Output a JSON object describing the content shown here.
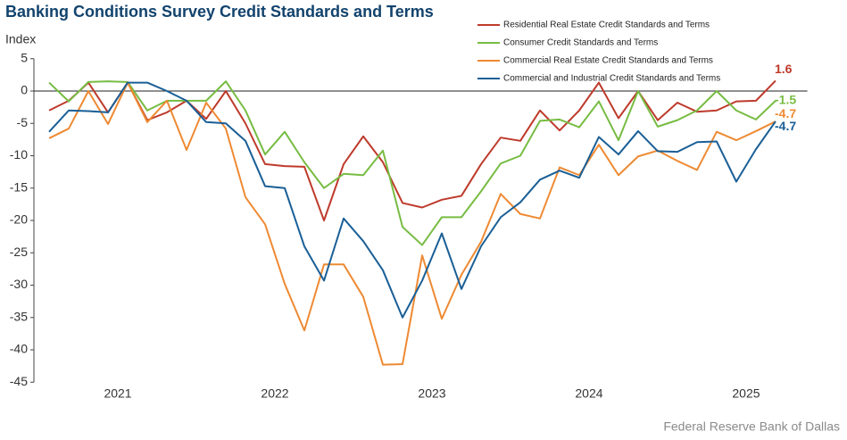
{
  "chart_data": {
    "type": "line",
    "title": "Banking Conditions Survey Credit Standards and Terms",
    "y_label": "Index",
    "source": "Federal Reserve Bank of Dallas",
    "x": [
      2021.0625,
      2021.1875,
      2021.3125,
      2021.4375,
      2021.5625,
      2021.6875,
      2021.8125,
      2021.9375,
      2022.0625,
      2022.1875,
      2022.3125,
      2022.4375,
      2022.5625,
      2022.6875,
      2022.8125,
      2022.9375,
      2023.0625,
      2023.1875,
      2023.3125,
      2023.4375,
      2023.5625,
      2023.6875,
      2023.8125,
      2023.9375,
      2024.0625,
      2024.1875,
      2024.3125,
      2024.4375,
      2024.5625,
      2024.6875,
      2024.8125,
      2024.9375,
      2025.0625,
      2025.1875,
      2025.3125,
      2025.4375,
      2025.5625,
      2025.6875
    ],
    "xlim": [
      2020.96,
      2025.89
    ],
    "xticks": [
      {
        "value": 2021.5,
        "label": "2021"
      },
      {
        "value": 2022.5,
        "label": "2022"
      },
      {
        "value": 2023.5,
        "label": "2023"
      },
      {
        "value": 2024.5,
        "label": "2024"
      },
      {
        "value": 2025.5,
        "label": "2025"
      }
    ],
    "ylim": [
      -45,
      5
    ],
    "yticks": [
      5,
      0,
      -5,
      -10,
      -15,
      -20,
      -25,
      -30,
      -35,
      -40,
      -45
    ],
    "series": [
      {
        "name": "Residential Real Estate Credit Standards and Terms",
        "color": "#be3a2b",
        "values": [
          -3,
          -1.5,
          1.3,
          -3.3,
          1.3,
          -4.5,
          -3.3,
          -1.5,
          -4.3,
          0,
          -5,
          -11.3,
          -11.6,
          -11.7,
          -20,
          -11.3,
          -7,
          -11,
          -17.3,
          -18,
          -16.8,
          -16.2,
          -11.3,
          -7.2,
          -7.7,
          -3,
          -6.1,
          -3,
          1.3,
          -4.2,
          0,
          -4.5,
          -1.8,
          -3.2,
          -3,
          -1.6,
          -1.5,
          1.6
        ]
      },
      {
        "name": "Consumer Credit Standards and Terms",
        "color": "#77bc43",
        "values": [
          1.3,
          -1.6,
          1.4,
          1.5,
          1.4,
          -3,
          -1.5,
          -1.5,
          -1.5,
          1.5,
          -3,
          -9.8,
          -6.3,
          -11,
          -15,
          -12.8,
          -13,
          -9.2,
          -21,
          -23.8,
          -19.5,
          -19.5,
          -15.5,
          -11.2,
          -10,
          -4.6,
          -4.4,
          -5.6,
          -1.6,
          -7.6,
          0,
          -5.5,
          -4.5,
          -3,
          0,
          -3,
          -4.4,
          -1.5
        ]
      },
      {
        "name": "Commercial Real Estate Credit Standards and Terms",
        "color": "#ee8a33",
        "values": [
          -7.3,
          -5.8,
          0,
          -5.1,
          1.3,
          -4.8,
          -1.5,
          -9.1,
          -1.8,
          -5.8,
          -16.4,
          -20.6,
          -29.8,
          -37,
          -26.8,
          -26.8,
          -31.8,
          -42.3,
          -42.2,
          -25.4,
          -35.2,
          -28.4,
          -23.3,
          -15.9,
          -19,
          -19.7,
          -11.8,
          -13,
          -8.3,
          -13,
          -10.1,
          -9.2,
          -10.8,
          -12.2,
          -6.3,
          -7.6,
          -6.2,
          -4.7
        ]
      },
      {
        "name": "Commercial and Industrial Credit Standards and Terms",
        "color": "#1a5f96",
        "values": [
          -6.3,
          -3,
          -3.1,
          -3.3,
          1.3,
          1.3,
          0,
          -1.5,
          -4.8,
          -5,
          -7.7,
          -14.7,
          -15,
          -24,
          -29.3,
          -19.7,
          -23.2,
          -27.7,
          -35,
          -29.3,
          -22,
          -30.6,
          -24,
          -19.5,
          -17.2,
          -13.7,
          -12.3,
          -13.4,
          -7.1,
          -9.8,
          -6.2,
          -9.3,
          -9.4,
          -7.9,
          -7.8,
          -14,
          -9,
          -4.7
        ]
      }
    ]
  }
}
